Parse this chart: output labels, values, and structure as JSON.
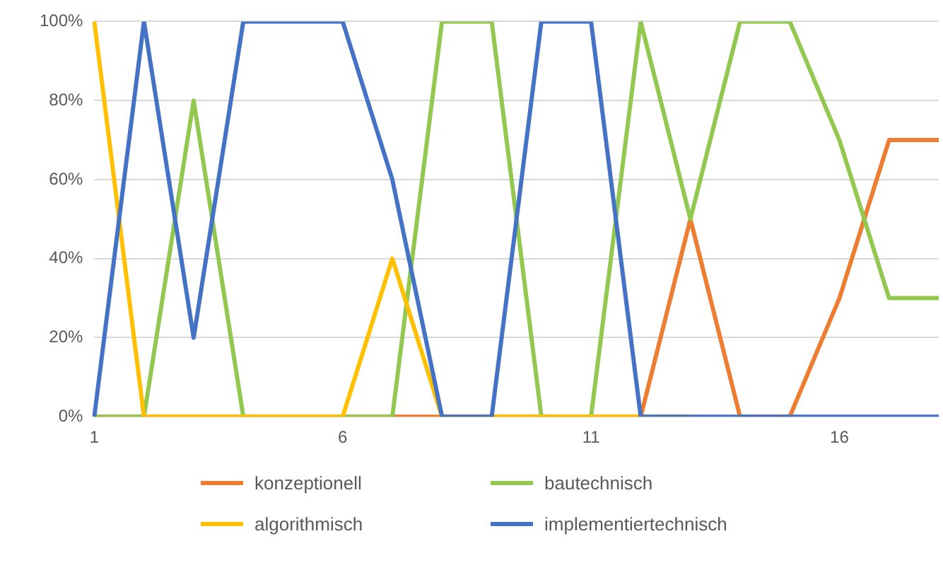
{
  "chart_data": {
    "type": "line",
    "categories": [
      "1",
      null,
      null,
      null,
      null,
      "6",
      null,
      null,
      null,
      null,
      "11",
      null,
      null,
      null,
      null,
      "16",
      null,
      null
    ],
    "series": [
      {
        "name": "konzeptionell",
        "color": "#ed7d31",
        "values": [
          0,
          0,
          0,
          0,
          0,
          0,
          0,
          0,
          0,
          0,
          0,
          0,
          50,
          0,
          0,
          30,
          70,
          70
        ]
      },
      {
        "name": "bautechnisch",
        "color": "#92c84f",
        "values": [
          0,
          0,
          80,
          0,
          0,
          0,
          0,
          100,
          100,
          0,
          0,
          100,
          50,
          100,
          100,
          70,
          30,
          30
        ]
      },
      {
        "name": "algorithmisch",
        "color": "#ffc000",
        "values": [
          100,
          0,
          0,
          0,
          0,
          0,
          40,
          0,
          0,
          0,
          0,
          0,
          0,
          null,
          null,
          null,
          null,
          null
        ]
      },
      {
        "name": "implementiertechnisch",
        "color": "#4472c4",
        "values": [
          0,
          100,
          20,
          100,
          100,
          100,
          60,
          0,
          0,
          100,
          100,
          0,
          0,
          0,
          0,
          0,
          0,
          0
        ]
      }
    ],
    "ylim": [
      0,
      100
    ],
    "yticks": [
      {
        "value": 0,
        "label": "0%"
      },
      {
        "value": 20,
        "label": "20%"
      },
      {
        "value": 40,
        "label": "40%"
      },
      {
        "value": 60,
        "label": "60%"
      },
      {
        "value": 80,
        "label": "80%"
      },
      {
        "value": 100,
        "label": "100%"
      }
    ],
    "grid": "y",
    "legend": "bottom",
    "marker": "none",
    "line_style": "solid"
  }
}
